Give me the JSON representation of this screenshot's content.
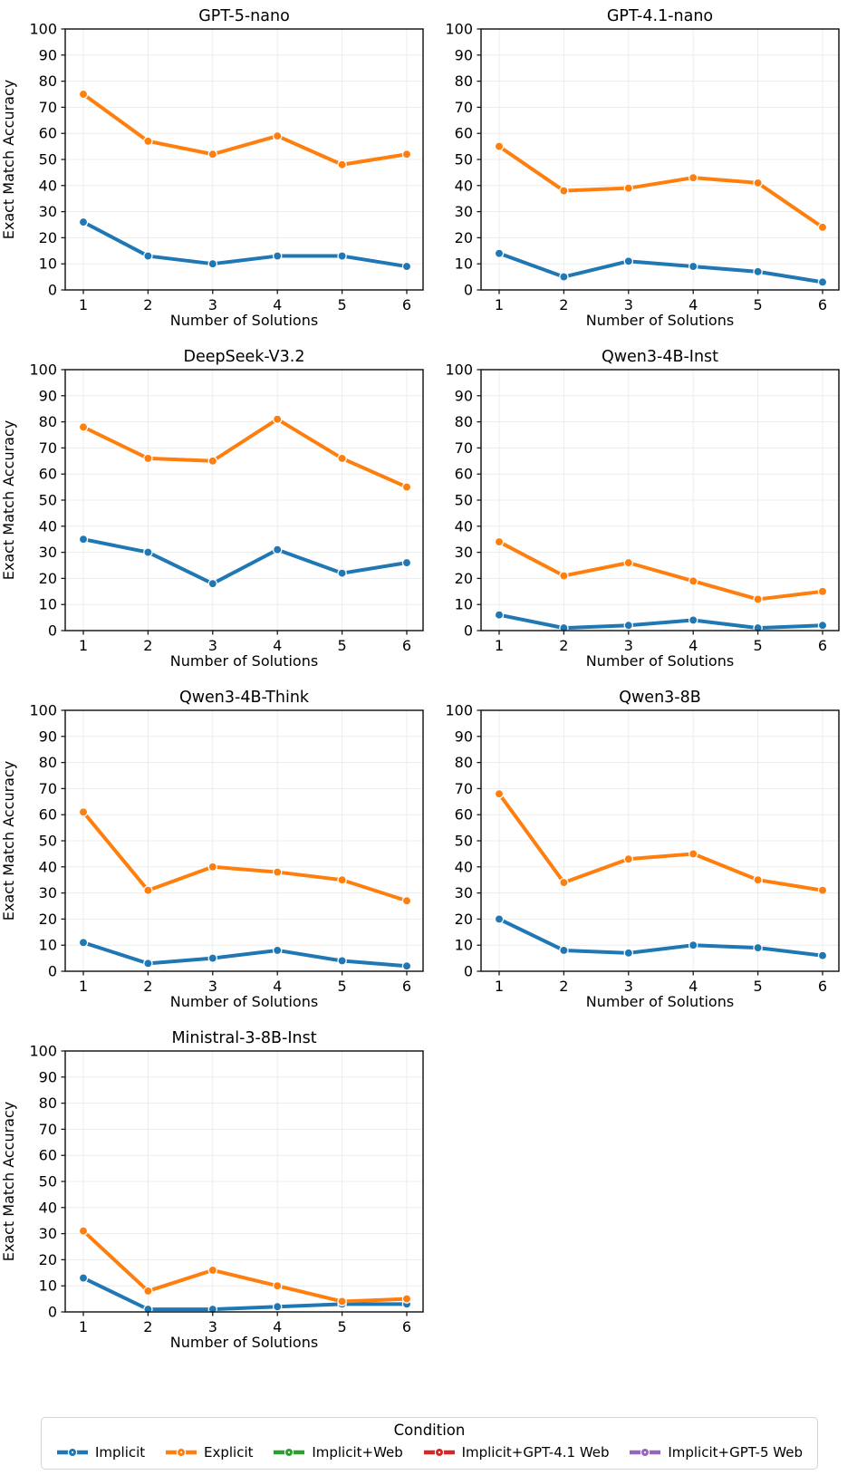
{
  "legend": {
    "title": "Condition",
    "entries": [
      {
        "label": "Implicit",
        "color": "#1f77b4"
      },
      {
        "label": "Explicit",
        "color": "#ff7f0e"
      },
      {
        "label": "Implicit+Web",
        "color": "#2ca02c"
      },
      {
        "label": "Implicit+GPT-4.1 Web",
        "color": "#d62728"
      },
      {
        "label": "Implicit+GPT-5 Web",
        "color": "#9467bd"
      }
    ]
  },
  "axes": {
    "y_ticks": [
      0,
      10,
      20,
      30,
      40,
      50,
      60,
      70,
      80,
      90,
      100
    ],
    "x_ticks": [
      1,
      2,
      3,
      4,
      5,
      6
    ],
    "ylim": [
      0,
      100
    ],
    "grid": true
  },
  "chart_data": [
    {
      "type": "line",
      "title": "GPT-5-nano",
      "xlabel": "Number of Solutions",
      "ylabel": "Exact Match Accuracy",
      "x": [
        1,
        2,
        3,
        4,
        5,
        6
      ],
      "ylim": [
        0,
        100
      ],
      "series": [
        {
          "name": "Implicit",
          "color": "#1f77b4",
          "values": [
            26,
            13,
            10,
            13,
            13,
            9
          ]
        },
        {
          "name": "Explicit",
          "color": "#ff7f0e",
          "values": [
            75,
            57,
            52,
            59,
            48,
            52
          ]
        }
      ]
    },
    {
      "type": "line",
      "title": "GPT-4.1-nano",
      "xlabel": "Number of Solutions",
      "ylabel": "",
      "x": [
        1,
        2,
        3,
        4,
        5,
        6
      ],
      "ylim": [
        0,
        100
      ],
      "series": [
        {
          "name": "Implicit",
          "color": "#1f77b4",
          "values": [
            14,
            5,
            11,
            9,
            7,
            3
          ]
        },
        {
          "name": "Explicit",
          "color": "#ff7f0e",
          "values": [
            55,
            38,
            39,
            43,
            41,
            24
          ]
        }
      ]
    },
    {
      "type": "line",
      "title": "DeepSeek-V3.2",
      "xlabel": "Number of Solutions",
      "ylabel": "Exact Match Accuracy",
      "x": [
        1,
        2,
        3,
        4,
        5,
        6
      ],
      "ylim": [
        0,
        100
      ],
      "series": [
        {
          "name": "Implicit",
          "color": "#1f77b4",
          "values": [
            35,
            30,
            18,
            31,
            22,
            26
          ]
        },
        {
          "name": "Explicit",
          "color": "#ff7f0e",
          "values": [
            78,
            66,
            65,
            81,
            66,
            55
          ]
        }
      ]
    },
    {
      "type": "line",
      "title": "Qwen3-4B-Inst",
      "xlabel": "Number of Solutions",
      "ylabel": "",
      "x": [
        1,
        2,
        3,
        4,
        5,
        6
      ],
      "ylim": [
        0,
        100
      ],
      "series": [
        {
          "name": "Implicit",
          "color": "#1f77b4",
          "values": [
            6,
            1,
            2,
            4,
            1,
            2
          ]
        },
        {
          "name": "Explicit",
          "color": "#ff7f0e",
          "values": [
            34,
            21,
            26,
            19,
            12,
            15
          ]
        }
      ]
    },
    {
      "type": "line",
      "title": "Qwen3-4B-Think",
      "xlabel": "Number of Solutions",
      "ylabel": "Exact Match Accuracy",
      "x": [
        1,
        2,
        3,
        4,
        5,
        6
      ],
      "ylim": [
        0,
        100
      ],
      "series": [
        {
          "name": "Implicit",
          "color": "#1f77b4",
          "values": [
            11,
            3,
            5,
            8,
            4,
            2
          ]
        },
        {
          "name": "Explicit",
          "color": "#ff7f0e",
          "values": [
            61,
            31,
            40,
            38,
            35,
            27
          ]
        }
      ]
    },
    {
      "type": "line",
      "title": "Qwen3-8B",
      "xlabel": "Number of Solutions",
      "ylabel": "",
      "x": [
        1,
        2,
        3,
        4,
        5,
        6
      ],
      "ylim": [
        0,
        100
      ],
      "series": [
        {
          "name": "Implicit",
          "color": "#1f77b4",
          "values": [
            20,
            8,
            7,
            10,
            9,
            6
          ]
        },
        {
          "name": "Explicit",
          "color": "#ff7f0e",
          "values": [
            68,
            34,
            43,
            45,
            35,
            31
          ]
        }
      ]
    },
    {
      "type": "line",
      "title": "Ministral-3-8B-Inst",
      "xlabel": "Number of Solutions",
      "ylabel": "Exact Match Accuracy",
      "x": [
        1,
        2,
        3,
        4,
        5,
        6
      ],
      "ylim": [
        0,
        100
      ],
      "series": [
        {
          "name": "Implicit",
          "color": "#1f77b4",
          "values": [
            13,
            1,
            1,
            2,
            3,
            3
          ]
        },
        {
          "name": "Explicit",
          "color": "#ff7f0e",
          "values": [
            31,
            8,
            16,
            10,
            4,
            5
          ]
        }
      ]
    }
  ]
}
